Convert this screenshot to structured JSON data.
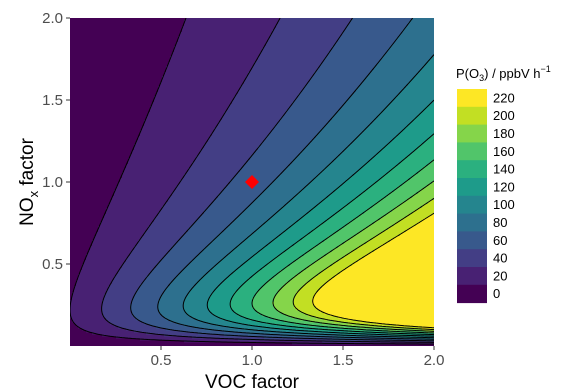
{
  "chart_data": {
    "type": "heatmap",
    "subtype": "filled-contour",
    "title": "",
    "xlabel": "VOC factor",
    "ylabel": {
      "base": "NO",
      "sub": "x",
      "tail": " factor"
    },
    "xlim": [
      0.0,
      2.0
    ],
    "ylim": [
      0.0,
      2.0
    ],
    "x_ticks": [
      0.5,
      1.0,
      1.5,
      2.0
    ],
    "x_tick_labels": [
      "0.5",
      "1.0",
      "1.5",
      "2.0"
    ],
    "y_ticks": [
      0.5,
      1.0,
      1.5,
      2.0
    ],
    "y_tick_labels": [
      "0.5",
      "1.0",
      "1.5",
      "2.0"
    ],
    "grid": false,
    "legend": {
      "position": "right",
      "title": {
        "pre": "P(O",
        "sub": "3",
        "post": ") / ppbV h",
        "sup": "−1"
      },
      "levels": [
        0,
        20,
        40,
        60,
        80,
        100,
        120,
        140,
        160,
        180,
        200,
        220
      ],
      "labels": [
        "0",
        "20",
        "40",
        "60",
        "80",
        "100",
        "120",
        "140",
        "160",
        "180",
        "200",
        "220"
      ],
      "colors": [
        "#440154",
        "#482173",
        "#433E85",
        "#38598C",
        "#2D708E",
        "#25858E",
        "#1E9B8A",
        "#2BB07F",
        "#51C56A",
        "#85D54A",
        "#C2DF23",
        "#FDE725"
      ]
    },
    "field_model": "P(O3) increases with VOC factor and peaks near NOx factor 0.2-0.3; decreases at high NOx and drops to near zero as NOx approaches 0",
    "marker": {
      "x": 1.0,
      "y": 1.0,
      "shape": "diamond",
      "color": "#FF0000"
    }
  }
}
